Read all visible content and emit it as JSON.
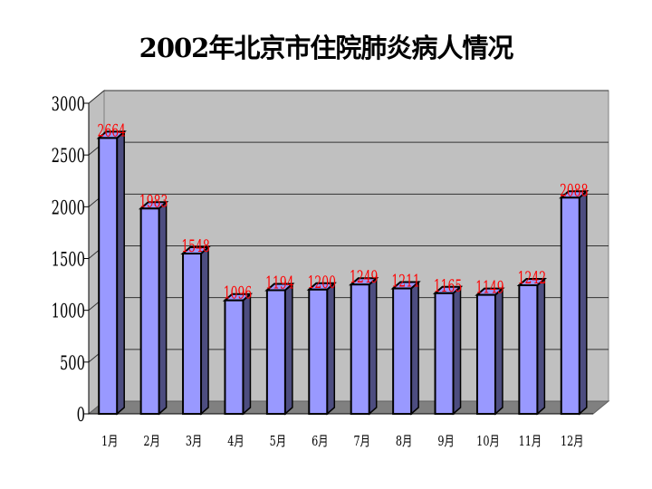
{
  "chart_data": {
    "type": "bar",
    "title": "2002年北京市住院肺炎病人情况",
    "categories": [
      "1月",
      "2月",
      "3月",
      "4月",
      "5月",
      "6月",
      "7月",
      "8月",
      "9月",
      "10月",
      "11月",
      "12月"
    ],
    "values": [
      2664,
      1983,
      1548,
      1096,
      1194,
      1200,
      1249,
      1211,
      1165,
      1149,
      1242,
      2088
    ],
    "ylim": [
      0,
      3000
    ],
    "yticks": [
      0,
      500,
      1000,
      1500,
      2000,
      2500,
      3000
    ],
    "grid": true,
    "style": "3d-column",
    "colors": {
      "bar_front": "#9999ff",
      "bar_side": "#4d4d80",
      "wall": "#c0c0c0",
      "floor": "#808080",
      "data_label": "#ff0000"
    }
  }
}
